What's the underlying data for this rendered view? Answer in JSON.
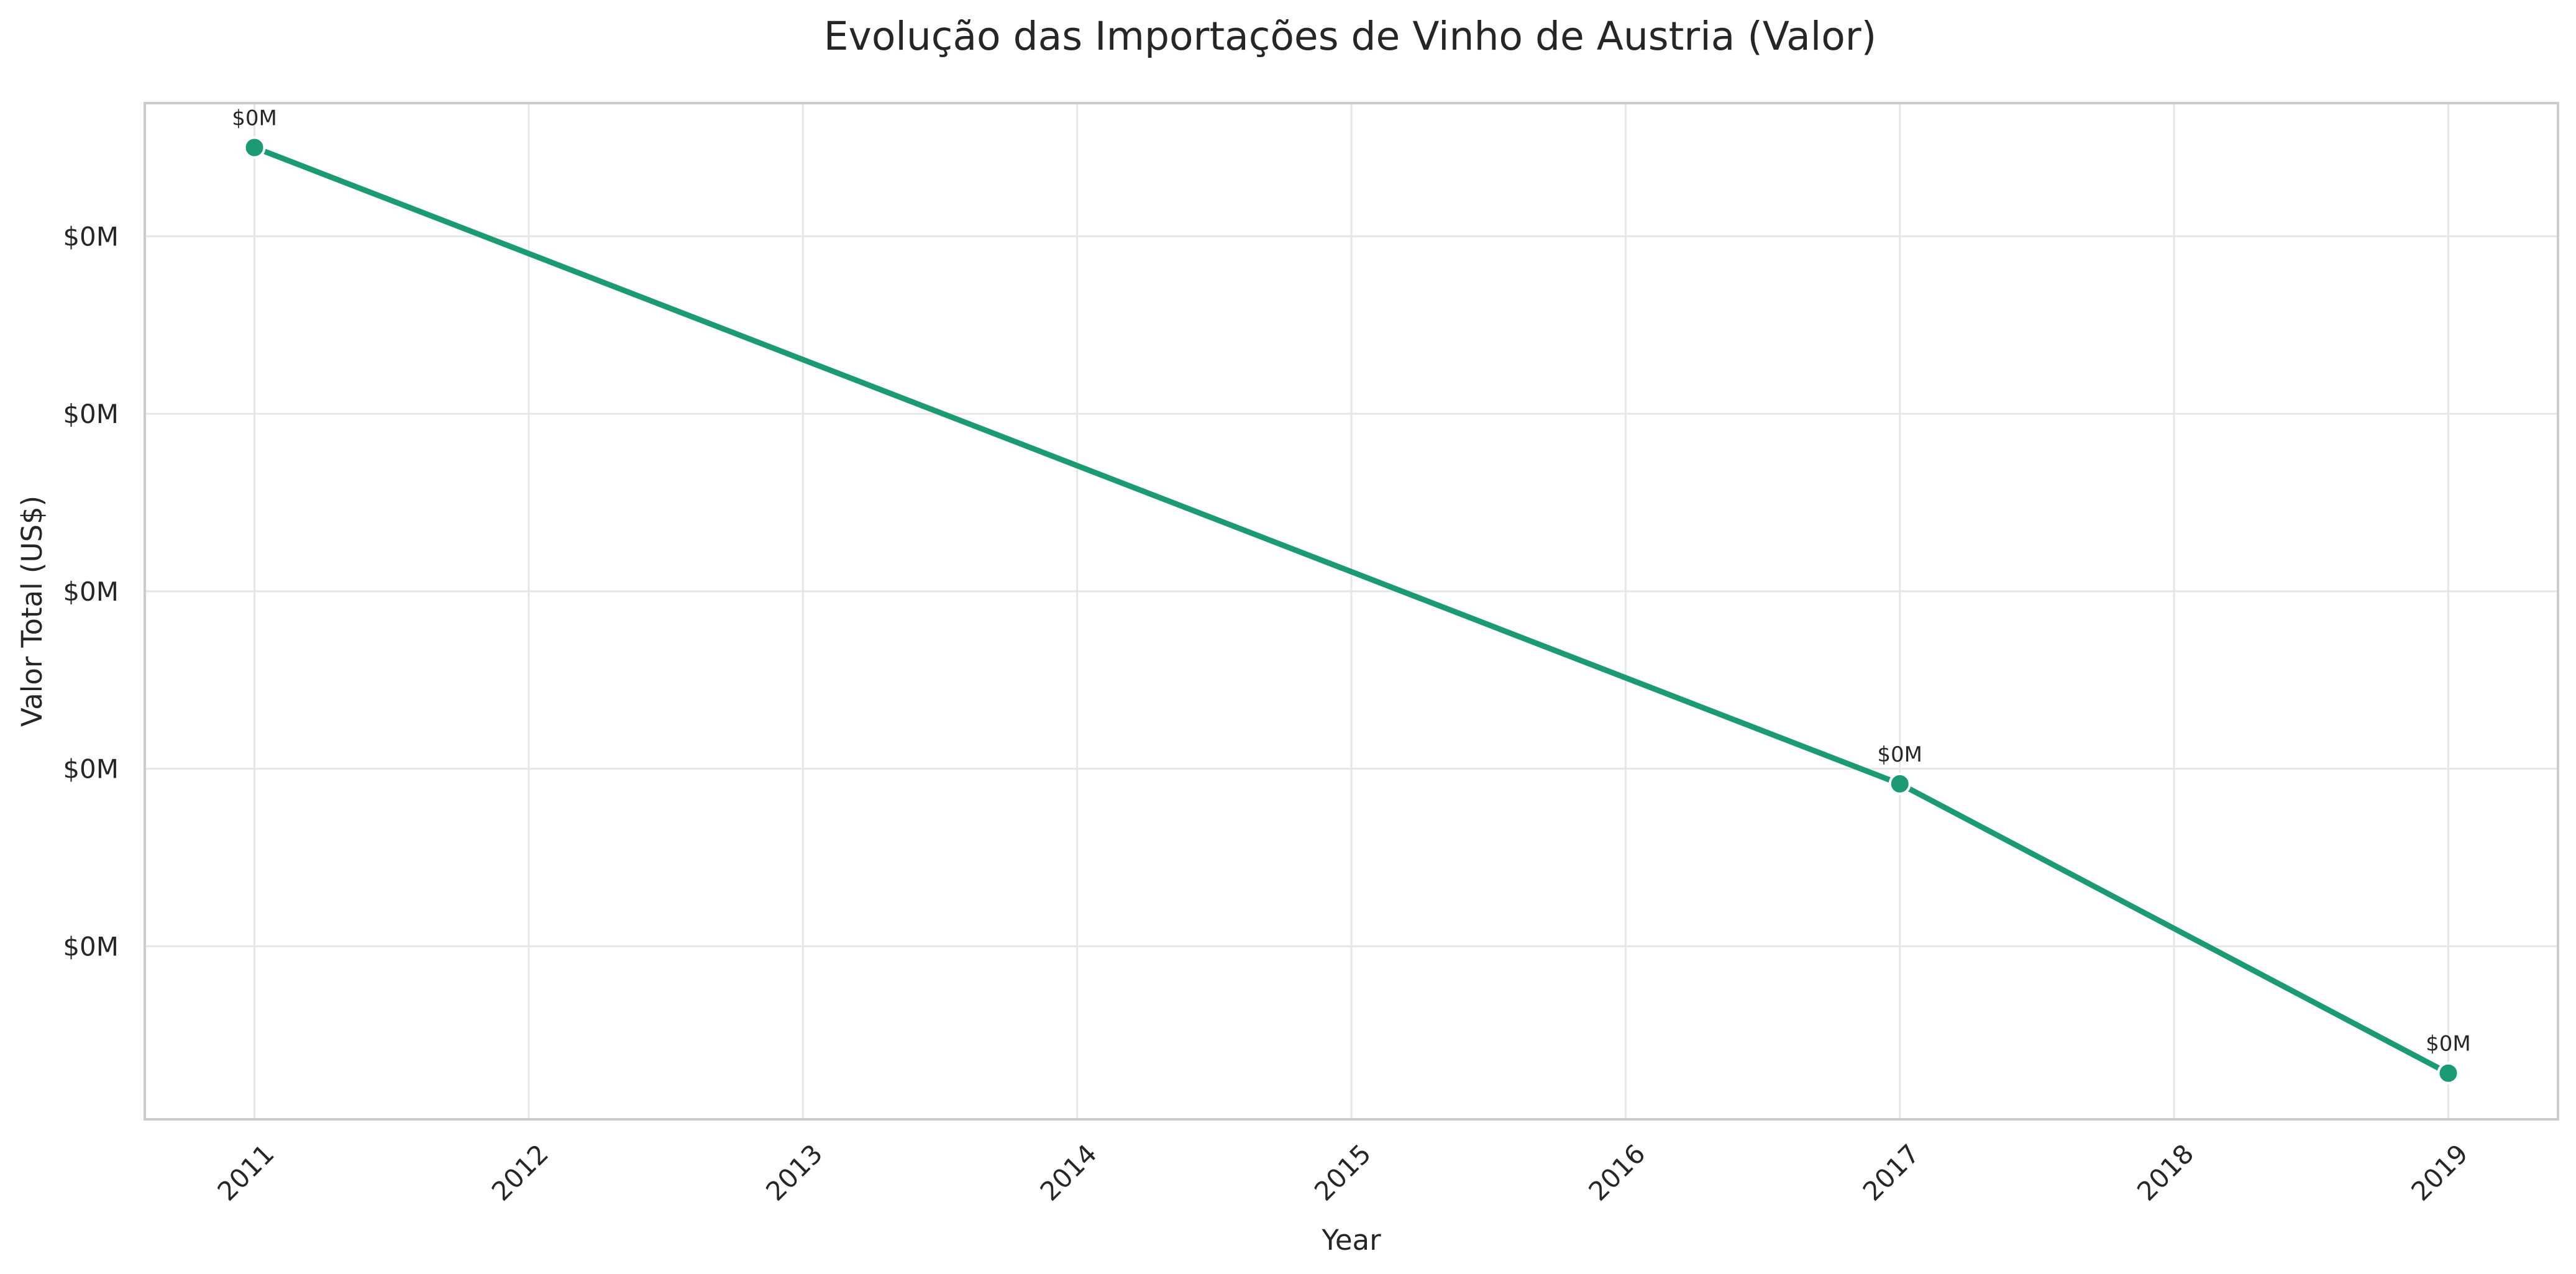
{
  "chart_data": {
    "type": "line",
    "title": "Evolução das Importações de Vinho de Austria (Valor)",
    "xlabel": "Year",
    "ylabel": "Valor Total (US$)",
    "x": [
      2011,
      2017,
      2019
    ],
    "series": [
      {
        "values": [
          1000,
          283,
          -43
        ],
        "labels": [
          "$0M",
          "$0M",
          "$0M"
        ],
        "color": "#1b9a74"
      }
    ],
    "xticks": [
      "2011",
      "2012",
      "2013",
      "2014",
      "2015",
      "2016",
      "2017",
      "2018",
      "2019"
    ],
    "yticks": [
      {
        "value": 900,
        "label": "$0M"
      },
      {
        "value": 700,
        "label": "$0M"
      },
      {
        "value": 500,
        "label": "$0M"
      },
      {
        "value": 300,
        "label": "$0M"
      },
      {
        "value": 100,
        "label": "$0M"
      }
    ],
    "xlim": [
      2010.6,
      2019.4
    ],
    "ylim": [
      -95,
      1050
    ],
    "grid": true
  }
}
